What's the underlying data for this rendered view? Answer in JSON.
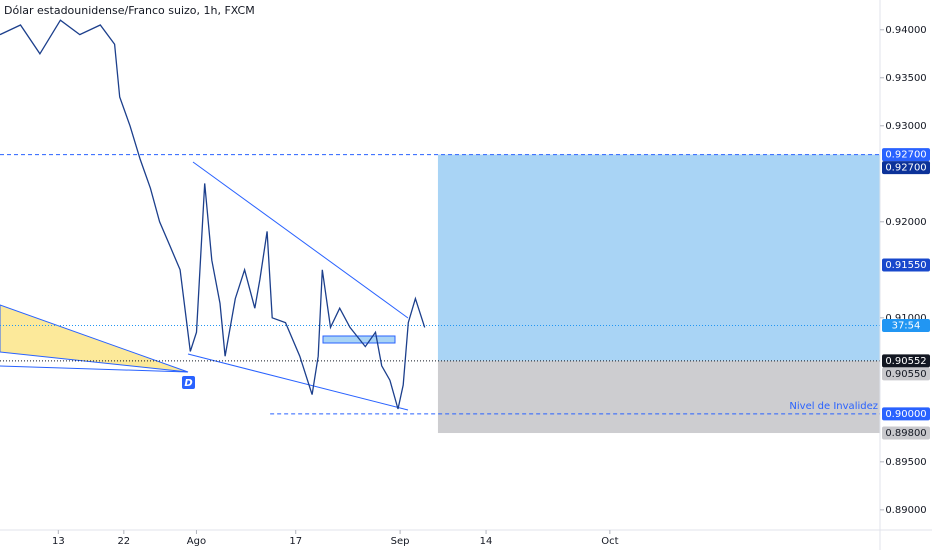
{
  "chart_data": {
    "type": "line",
    "title": "Dólar estadounidense/Franco suizo, 1h, FXCM",
    "xlim": [
      0,
      86
    ],
    "ylim": [
      0.8879,
      0.9431
    ],
    "xticks": [
      {
        "value": 5.7,
        "label": "13"
      },
      {
        "value": 12.1,
        "label": "22"
      },
      {
        "value": 19.2,
        "label": "Ago"
      },
      {
        "value": 28.9,
        "label": "17"
      },
      {
        "value": 39.1,
        "label": "Sep"
      },
      {
        "value": 47.5,
        "label": "14"
      },
      {
        "value": 59.6,
        "label": "Oct"
      }
    ],
    "yticks": [
      {
        "value": 0.94,
        "label": "0.94000"
      },
      {
        "value": 0.935,
        "label": "0.93500"
      },
      {
        "value": 0.93,
        "label": "0.93000"
      },
      {
        "value": 0.92,
        "label": "0.92000"
      },
      {
        "value": 0.91,
        "label": "0.91000"
      },
      {
        "value": 0.895,
        "label": "0.89500"
      },
      {
        "value": 0.89,
        "label": "0.89000"
      }
    ],
    "series": [
      {
        "name": "USDCHF",
        "color": "#1c3f8c",
        "x": [
          0,
          2,
          3.9,
          5.9,
          7.8,
          9.8,
          11.2,
          11.7,
          12.7,
          13.7,
          14.7,
          15.6,
          16.6,
          17.6,
          18.6,
          19.2,
          20,
          20.7,
          21.5,
          22,
          23,
          23.9,
          24.9,
          25.4,
          26.1,
          26.6,
          27.9,
          29.3,
          30.5,
          31.1,
          31.5,
          32.3,
          33.2,
          34.2,
          35.7,
          36.7,
          37.3,
          38.1,
          38.9,
          39.4,
          39.9,
          40.6,
          41.5
        ],
        "values": [
          0.9395,
          0.9405,
          0.9375,
          0.941,
          0.9395,
          0.9405,
          0.9385,
          0.933,
          0.93,
          0.9265,
          0.9235,
          0.92,
          0.9175,
          0.915,
          0.9065,
          0.9085,
          0.924,
          0.916,
          0.9115,
          0.906,
          0.912,
          0.915,
          0.911,
          0.914,
          0.919,
          0.91,
          0.9095,
          0.906,
          0.902,
          0.906,
          0.915,
          0.909,
          0.911,
          0.909,
          0.907,
          0.9085,
          0.905,
          0.9035,
          0.9005,
          0.903,
          0.9095,
          0.912,
          0.909
        ]
      }
    ],
    "position": {
      "x_start": 42.8,
      "target": 0.927,
      "entry": 0.90552,
      "stop": 0.898,
      "target_color": "#a9d4f5",
      "stop_color": "#cdcdd0"
    },
    "levels": [
      {
        "value": 0.927,
        "x_start": 0
      },
      {
        "value": 0.9,
        "x_start": 26.4
      }
    ],
    "annotation": "Nivel de Invalidez",
    "pattern_label": "D",
    "last_price": 0.9092,
    "countdown": "37:54",
    "price_labels": [
      {
        "value": 0.927,
        "label": "0.92700",
        "color": "#2962ff"
      },
      {
        "value": 0.927,
        "label": "0.92700",
        "color": "#0c3299"
      },
      {
        "value": 0.9155,
        "label": "0.91550",
        "color": "#1848cc"
      },
      {
        "value": 0.90552,
        "label": "0.90552",
        "color": "#131722"
      },
      {
        "value": 0.9055,
        "label": "0.90550",
        "color": "#c8c8cc"
      },
      {
        "value": 0.9,
        "label": "0.90000",
        "color": "#2962ff"
      },
      {
        "value": 0.898,
        "label": "0.89800",
        "color": "#c8c8cc"
      }
    ]
  }
}
